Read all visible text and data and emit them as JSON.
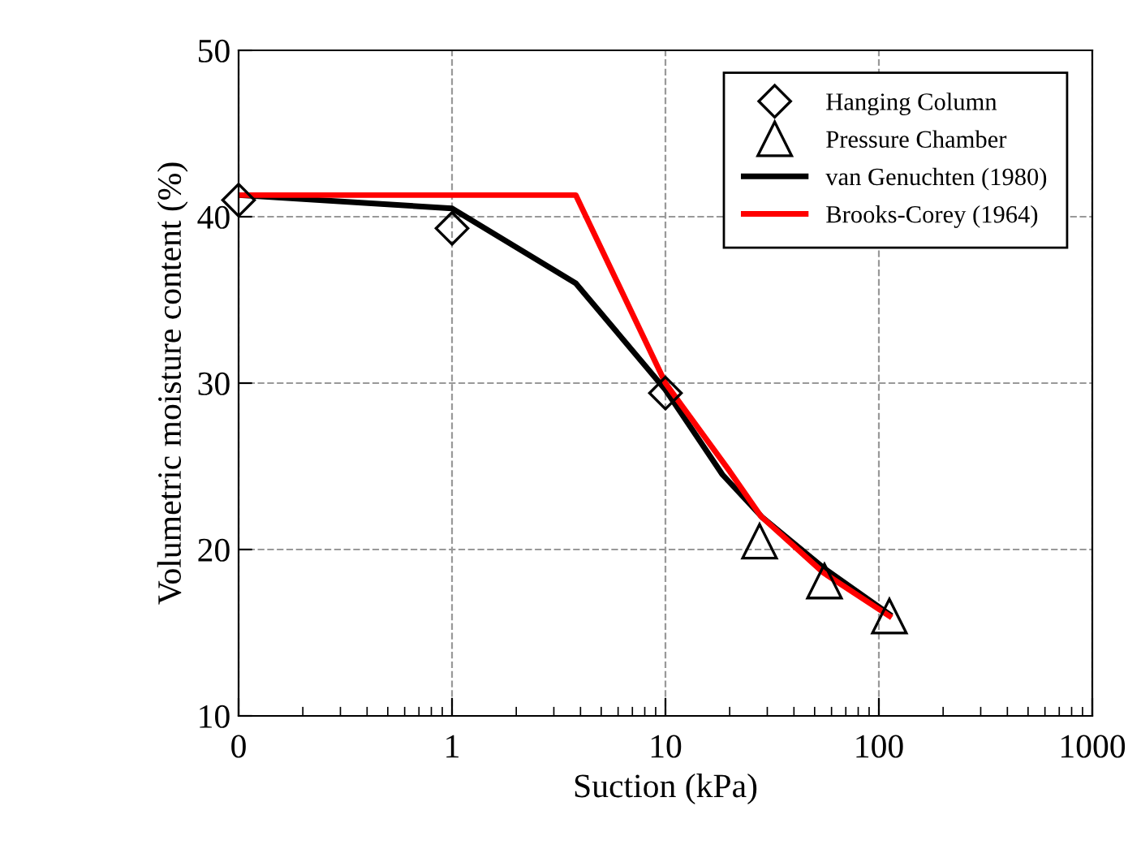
{
  "chart_data": {
    "type": "line",
    "xlabel": "Suction (kPa)",
    "ylabel": "Volumetric moisture content (%)",
    "log": "x",
    "xlim": [
      0.1,
      1000
    ],
    "xticks": [
      {
        "value": 0.1,
        "label": "0"
      },
      1,
      10,
      100,
      1000
    ],
    "ylim": [
      10,
      50
    ],
    "yticks": [
      10,
      20,
      30,
      40,
      50
    ],
    "grid": true,
    "legend": "top right",
    "series": [
      {
        "name": "Hanging Column",
        "type": "scatter",
        "marker": "diamond",
        "color": "#000000",
        "x": [
          0.1,
          1,
          10
        ],
        "values": [
          41.0,
          39.3,
          29.4
        ]
      },
      {
        "name": "Pressure Chamber",
        "type": "scatter",
        "marker": "triangle",
        "color": "#000000",
        "x": [
          27.6,
          55.6,
          112
        ],
        "values": [
          20.5,
          18.1,
          16.0
        ]
      },
      {
        "name": "van Genuchten (1980)",
        "marker": "none",
        "color": "#000000",
        "x": [
          0.1,
          1,
          3.8,
          10,
          18.5,
          28.6,
          55,
          112
        ],
        "values": [
          41.3,
          40.5,
          36.0,
          29.6,
          24.5,
          21.9,
          18.9,
          16.1
        ]
      },
      {
        "name": "Brooks-Corey (1964)",
        "marker": "none",
        "color": "#ff0000",
        "x": [
          0.1,
          3.8,
          10,
          20,
          28,
          55,
          112
        ],
        "values": [
          41.3,
          41.3,
          30.0,
          24.7,
          22.0,
          18.6,
          16.0
        ]
      }
    ]
  }
}
